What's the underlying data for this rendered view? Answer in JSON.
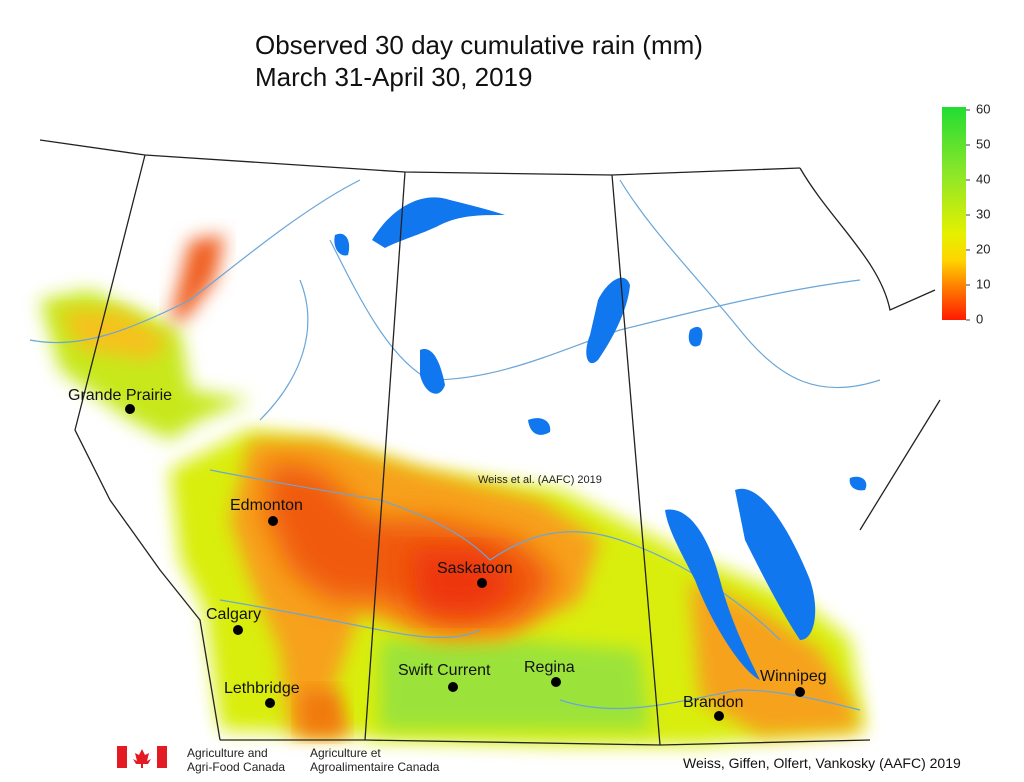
{
  "title": {
    "line1": "Observed 30 day cumulative rain (mm)",
    "line2": "March 31-April 30, 2019"
  },
  "legend": {
    "lim": [
      0,
      60
    ],
    "ticks": [
      0,
      10,
      20,
      30,
      40,
      50,
      60
    ]
  },
  "cities": [
    "Grande Prairie",
    "Edmonton",
    "Saskatoon",
    "Calgary",
    "Lethbridge",
    "Swift Current",
    "Regina",
    "Brandon",
    "Winnipeg"
  ],
  "watermark": "Weiss et al. (AAFC) 2019",
  "footer": {
    "english": [
      "Agriculture and",
      "Agri-Food Canada"
    ],
    "french": [
      "Agriculture et",
      "Agroalimentaire Canada"
    ],
    "credit": "Weiss, Giffen, Olfert, Vankosky (AAFC) 2019"
  }
}
